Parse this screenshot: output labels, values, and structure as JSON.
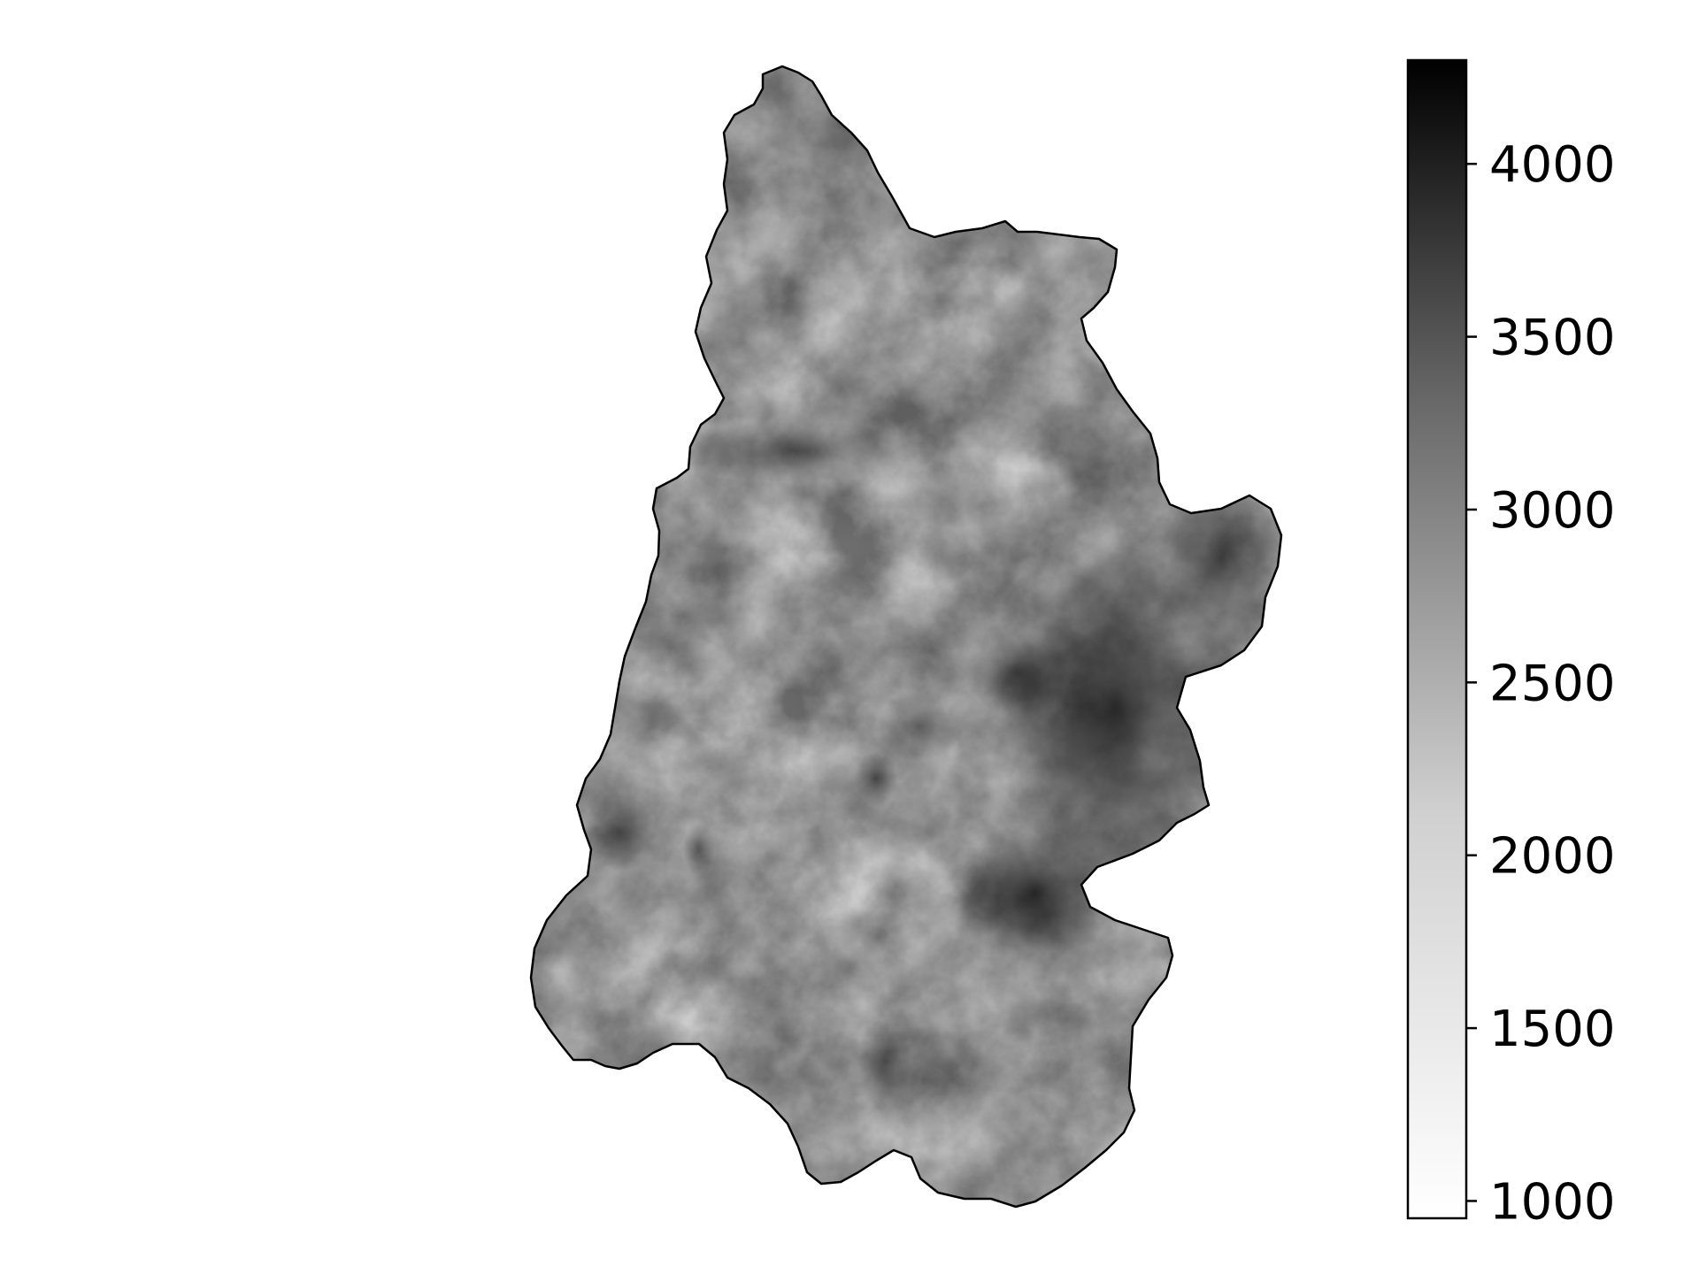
{
  "map": {
    "colormap": "Greys",
    "background_color": "#ffffff",
    "boundary_color": "#000000",
    "colorbar": {
      "min": 950,
      "max": 4300,
      "low_color": "#ffffff",
      "high_color": "#000000",
      "ticks": [
        {
          "value": 1000,
          "label": "1000"
        },
        {
          "value": 1500,
          "label": "1500"
        },
        {
          "value": 2000,
          "label": "2000"
        },
        {
          "value": 2500,
          "label": "2500"
        },
        {
          "value": 3000,
          "label": "3000"
        },
        {
          "value": 3500,
          "label": "3500"
        },
        {
          "value": 4000,
          "label": "4000"
        }
      ]
    }
  }
}
